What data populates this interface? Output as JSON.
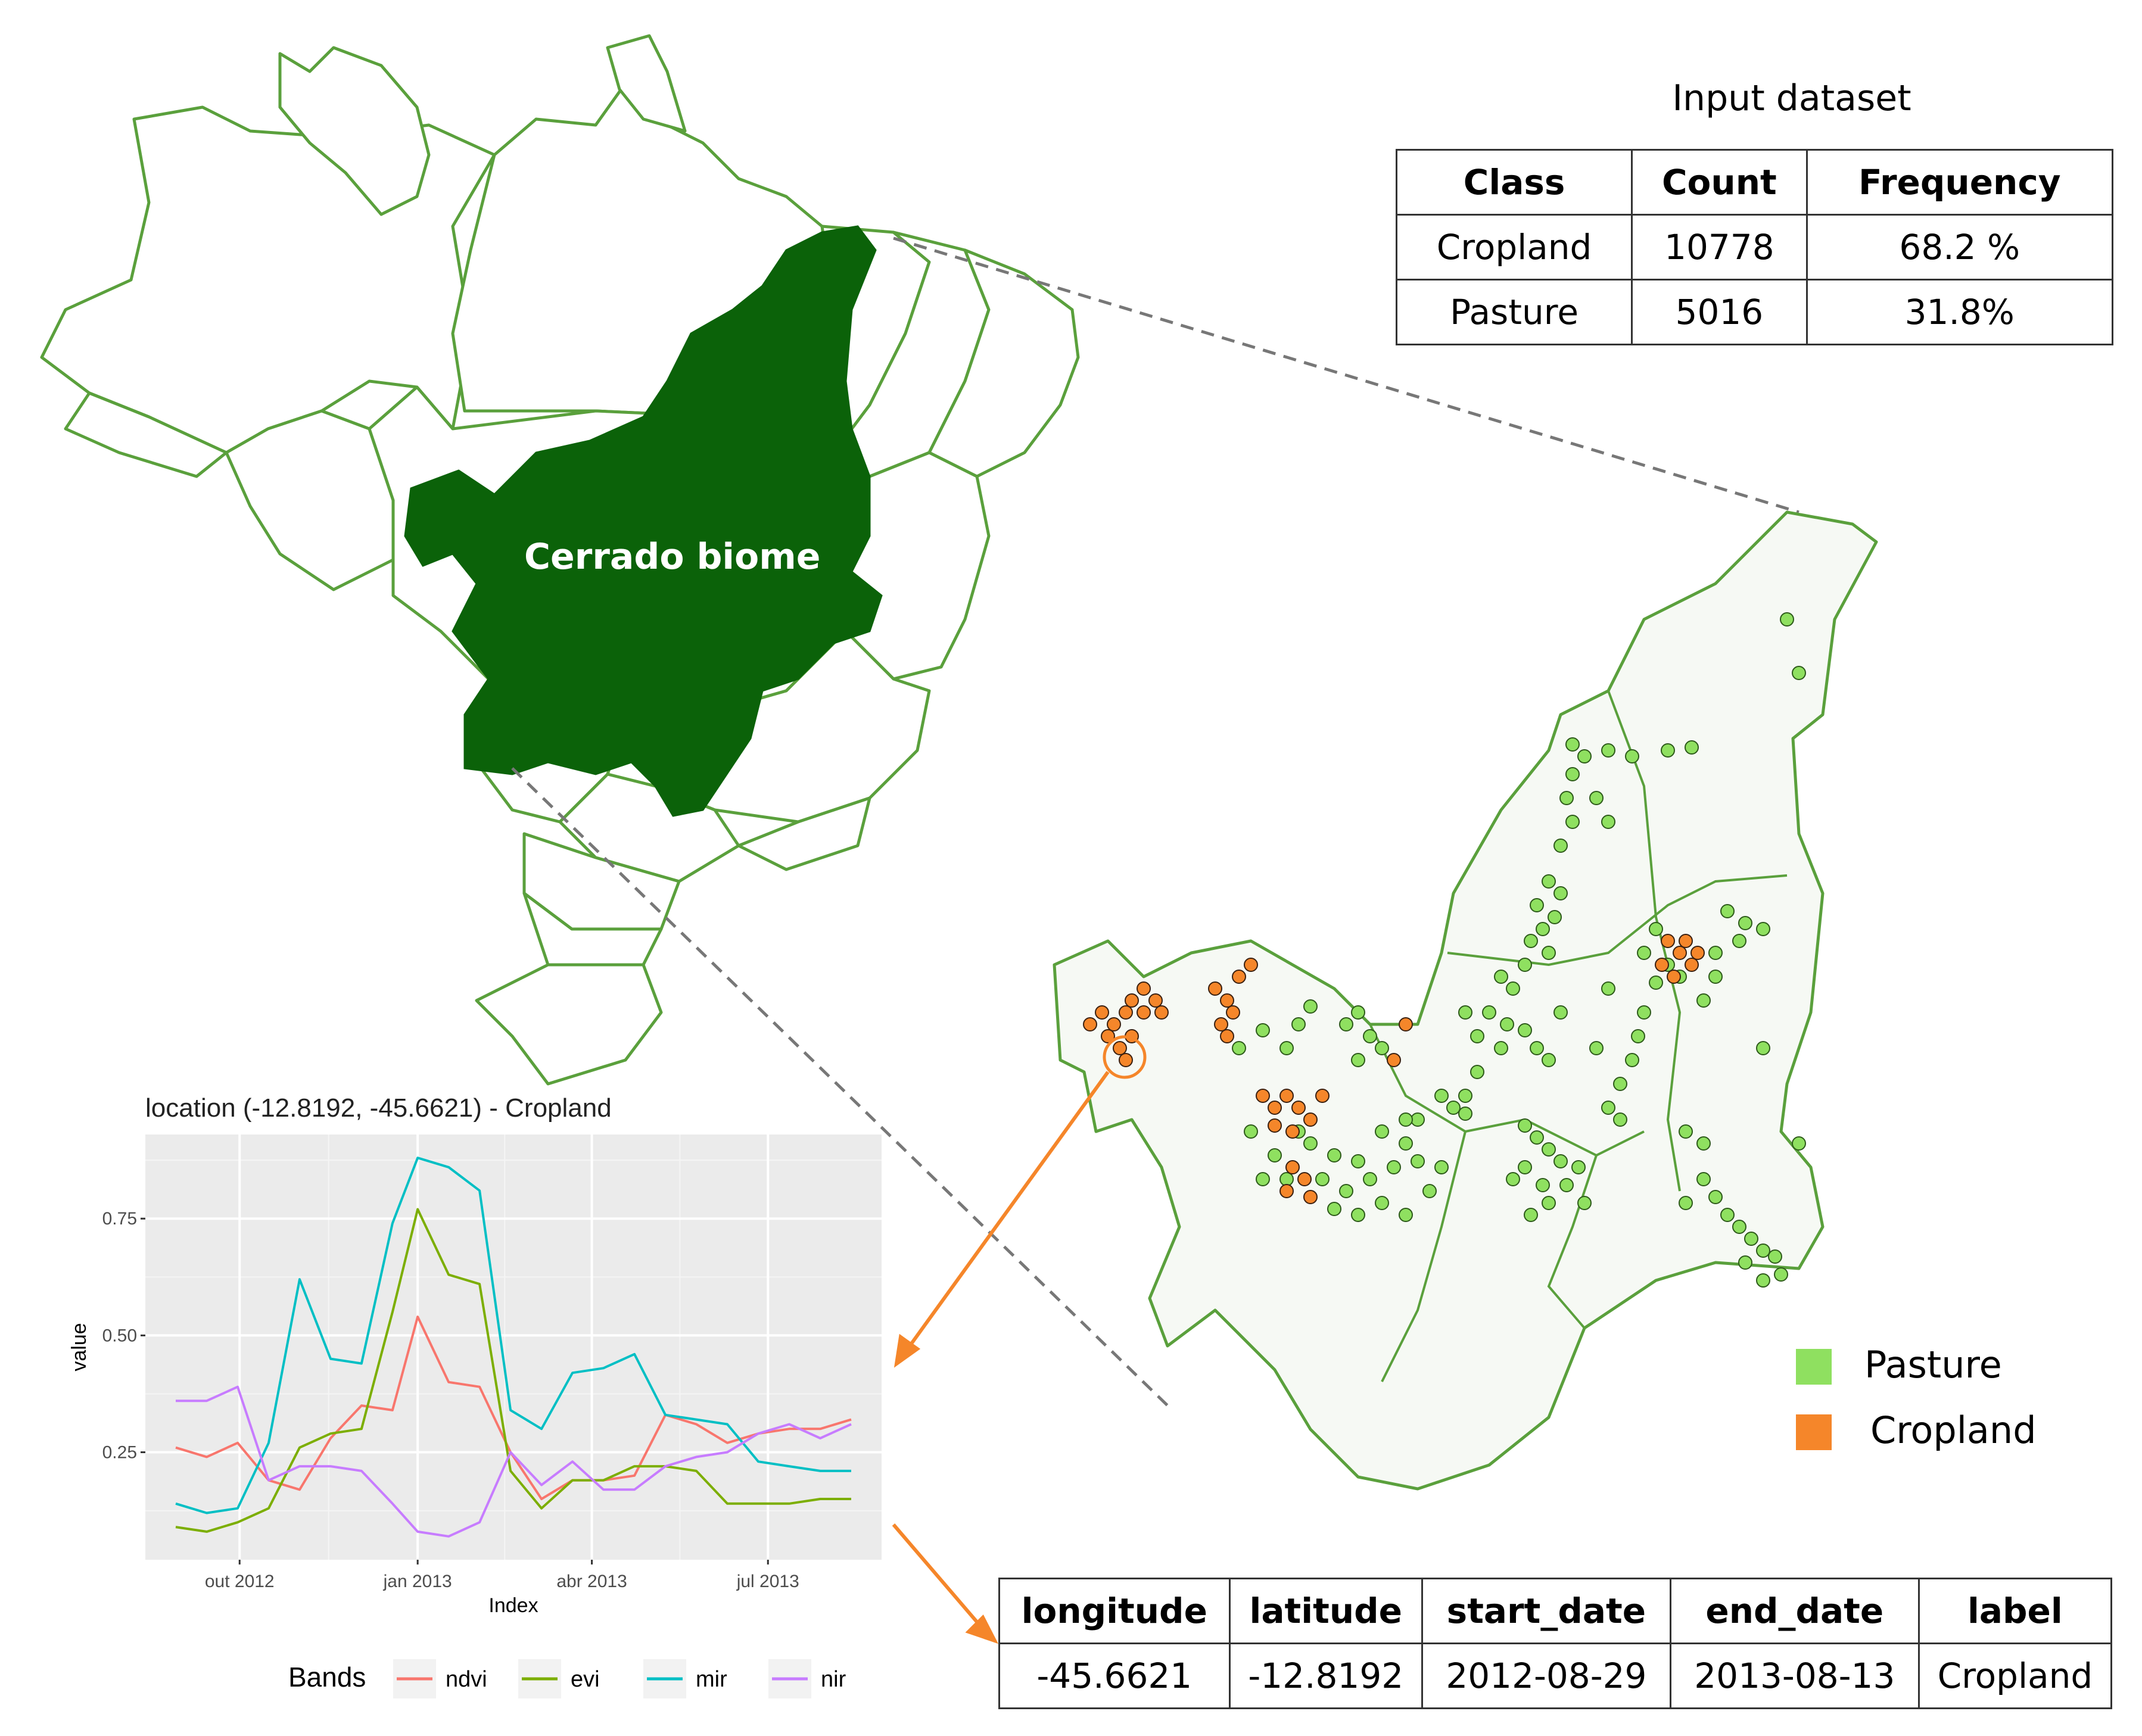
{
  "input_dataset": {
    "title": "Input dataset",
    "headers": [
      "Class",
      "Count",
      "Frequency"
    ],
    "rows": [
      [
        "Cropland",
        "10778",
        "68.2 %"
      ],
      [
        "Pasture",
        "5016",
        "31.8%"
      ]
    ]
  },
  "map": {
    "biome_label": "Cerrado biome",
    "biome_color": "#0b6209",
    "border_color": "#5aa03c",
    "legend": [
      {
        "label": "Pasture",
        "color": "#8fe060"
      },
      {
        "label": "Cropland",
        "color": "#f5862a"
      }
    ]
  },
  "sample": {
    "headers": [
      "longitude",
      "latitude",
      "start_date",
      "end_date",
      "label"
    ],
    "row": [
      "-45.6621",
      "-12.8192",
      "2012-08-29",
      "2013-08-13",
      "Cropland"
    ]
  },
  "chart_data": {
    "type": "line",
    "title": "location (-12.8192, -45.6621) - Cropland",
    "xlabel": "Index",
    "ylabel": "value",
    "x_ticks": [
      "out 2012",
      "jan 2013",
      "abr 2013",
      "jul 2013"
    ],
    "y_ticks": [
      "0.25",
      "0.50",
      "0.75"
    ],
    "ylim": [
      0.02,
      0.93
    ],
    "legend_title": "Bands",
    "x": [
      "2012-08-29",
      "2012-09-14",
      "2012-09-30",
      "2012-10-16",
      "2012-11-01",
      "2012-11-17",
      "2012-12-03",
      "2012-12-19",
      "2013-01-01",
      "2013-01-17",
      "2013-02-02",
      "2013-02-18",
      "2013-03-06",
      "2013-03-22",
      "2013-04-07",
      "2013-04-23",
      "2013-05-09",
      "2013-05-25",
      "2013-06-10",
      "2013-06-26",
      "2013-07-12",
      "2013-07-28",
      "2013-08-13"
    ],
    "series": [
      {
        "name": "ndvi",
        "color": "#f8766d",
        "values": [
          0.26,
          0.24,
          0.27,
          0.19,
          0.17,
          0.28,
          0.35,
          0.34,
          0.54,
          0.4,
          0.39,
          0.25,
          0.15,
          0.19,
          0.19,
          0.2,
          0.33,
          0.31,
          0.27,
          0.29,
          0.3,
          0.3,
          0.32
        ]
      },
      {
        "name": "evi",
        "color": "#7cae00",
        "values": [
          0.09,
          0.08,
          0.1,
          0.13,
          0.26,
          0.29,
          0.3,
          0.55,
          0.77,
          0.63,
          0.61,
          0.21,
          0.13,
          0.19,
          0.19,
          0.22,
          0.22,
          0.21,
          0.14,
          0.14,
          0.14,
          0.15,
          0.15
        ]
      },
      {
        "name": "mir",
        "color": "#00bfc4",
        "values": [
          0.14,
          0.12,
          0.13,
          0.27,
          0.62,
          0.45,
          0.44,
          0.74,
          0.88,
          0.86,
          0.81,
          0.34,
          0.3,
          0.42,
          0.43,
          0.46,
          0.33,
          0.32,
          0.31,
          0.23,
          0.22,
          0.21,
          0.21
        ]
      },
      {
        "name": "nir",
        "color": "#c77cff",
        "values": [
          0.36,
          0.36,
          0.39,
          0.19,
          0.22,
          0.22,
          0.21,
          0.14,
          0.08,
          0.07,
          0.1,
          0.25,
          0.18,
          0.23,
          0.17,
          0.17,
          0.22,
          0.24,
          0.25,
          0.29,
          0.31,
          0.28,
          0.31
        ]
      }
    ]
  }
}
